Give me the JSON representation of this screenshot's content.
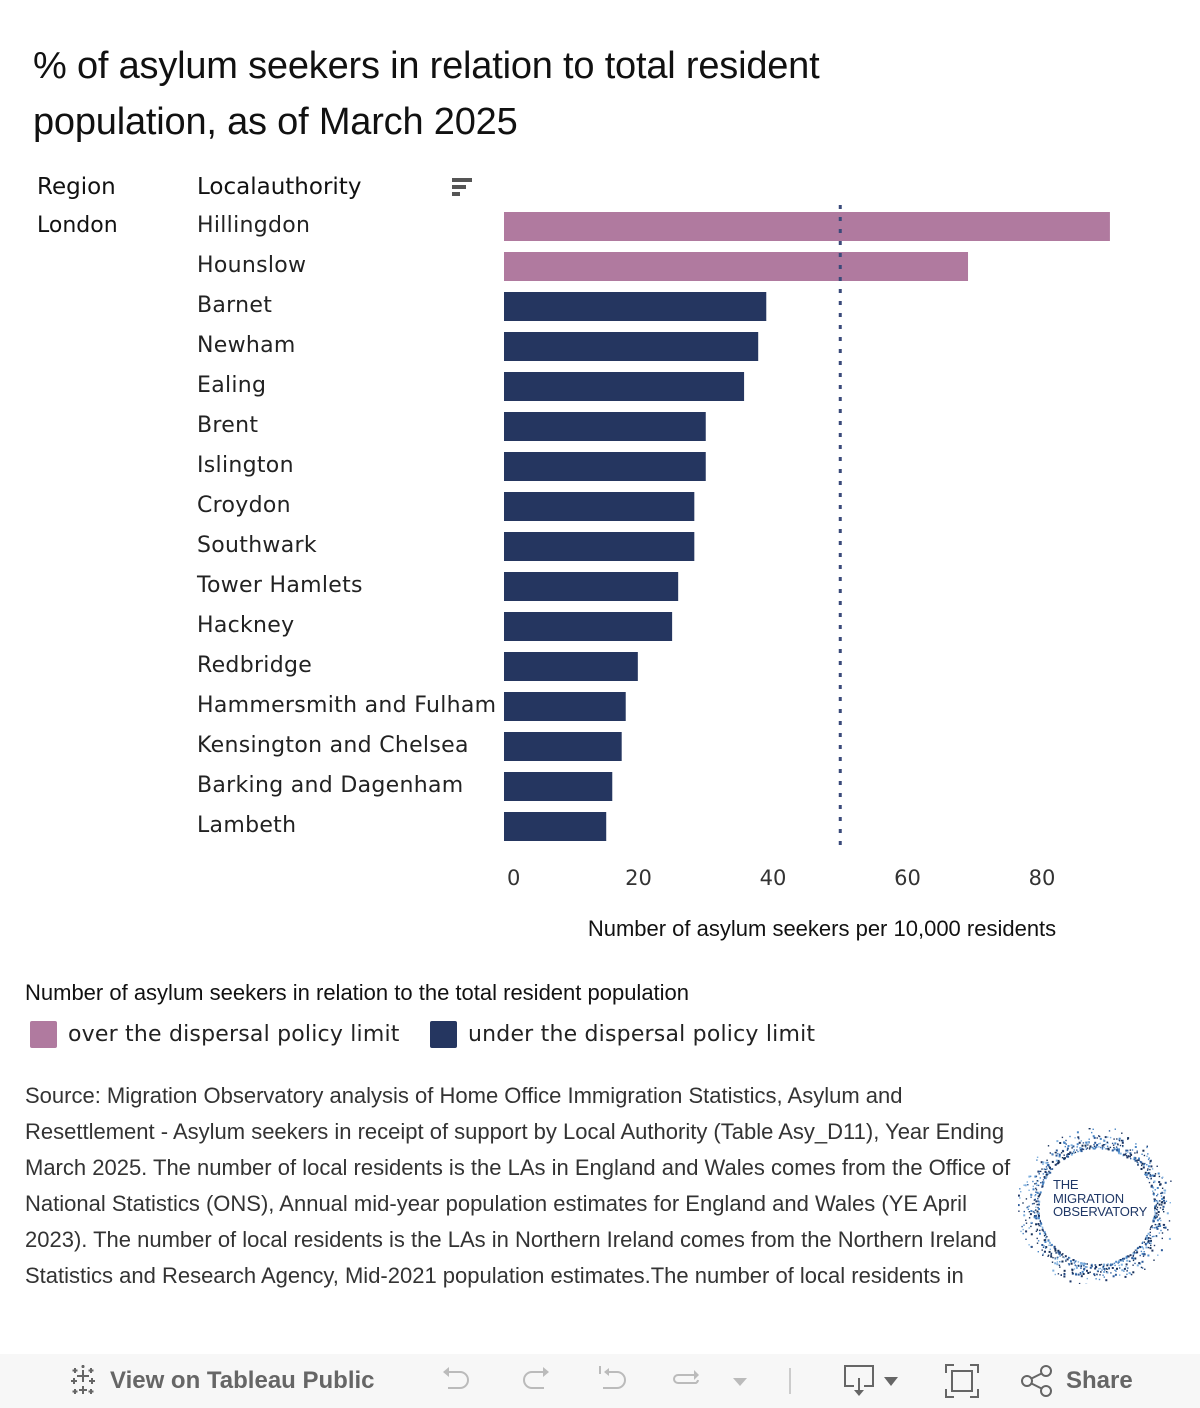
{
  "title": "% of asylum seekers in relation to total resident population, as of March 2025",
  "headers": {
    "region": "Region",
    "local_authority": "Localauthority",
    "sort_icon": "sort-descending-icon"
  },
  "region_value": "London",
  "colors": {
    "over": "#b07a9f",
    "under": "#253660",
    "reference_line": "#3a4a7a"
  },
  "chart_data": {
    "type": "bar",
    "orientation": "horizontal",
    "title": "% of asylum seekers in relation to total resident population, as of March 2025",
    "xlabel": "Number of asylum seekers per 10,000 residents",
    "ylabel": "Localauthority",
    "row_group": "London",
    "categories": [
      "Hillingdon",
      "Hounslow",
      "Barnet",
      "Newham",
      "Ealing",
      "Brent",
      "Islington",
      "Croydon",
      "Southwark",
      "Tower Hamlets",
      "Hackney",
      "Redbridge",
      "Hammersmith and Fulham",
      "Kensington and Chelsea",
      "Barking and Dagenham",
      "Lambeth"
    ],
    "values": [
      90.1,
      69.0,
      39.0,
      37.8,
      35.7,
      30.0,
      30.0,
      28.3,
      28.3,
      25.9,
      25.0,
      19.9,
      18.1,
      17.5,
      16.1,
      15.2
    ],
    "status": [
      "over",
      "over",
      "under",
      "under",
      "under",
      "under",
      "under",
      "under",
      "under",
      "under",
      "under",
      "under",
      "under",
      "under",
      "under",
      "under"
    ],
    "xlim": [
      0,
      91
    ],
    "xticks": [
      0,
      20,
      40,
      60,
      80
    ],
    "reference_line": {
      "value": 50,
      "style": "dotted",
      "label": "dispersal policy limit"
    },
    "grid": false,
    "legend": {
      "title": "Number of asylum seekers in relation to the total resident population",
      "placement": "bottom-left",
      "entries": [
        {
          "key": "over",
          "label": "over the dispersal policy limit",
          "color": "#b07a9f"
        },
        {
          "key": "under",
          "label": "under the dispersal policy limit",
          "color": "#253660"
        }
      ]
    }
  },
  "source_text": "Source: Migration Observatory analysis of Home Office Immigration Statistics, Asylum and Resettlement - Asylum seekers in receipt of support by Local Authority (Table Asy_D11), Year Ending March 2025. The number of local residents is the LAs in England and Wales comes from the Office of National Statistics (ONS), Annual mid-year population estimates for England and Wales (YE April 2023). The number of local residents is the LAs in Northern Ireland comes from the Northern Ireland Statistics and Research Agency, Mid-2021 population estimates.The number of local residents in",
  "logo": {
    "line1": "THE",
    "line2": "MIGRATION",
    "line3": "OBSERVATORY"
  },
  "toolbar": {
    "view_on_tableau": "View on Tableau Public",
    "share": "Share",
    "icons": [
      "tableau-logo-icon",
      "undo-icon",
      "redo-icon",
      "revert-icon",
      "refresh-icon",
      "dropdown-icon",
      "download-icon",
      "fullscreen-icon",
      "share-icon"
    ]
  }
}
